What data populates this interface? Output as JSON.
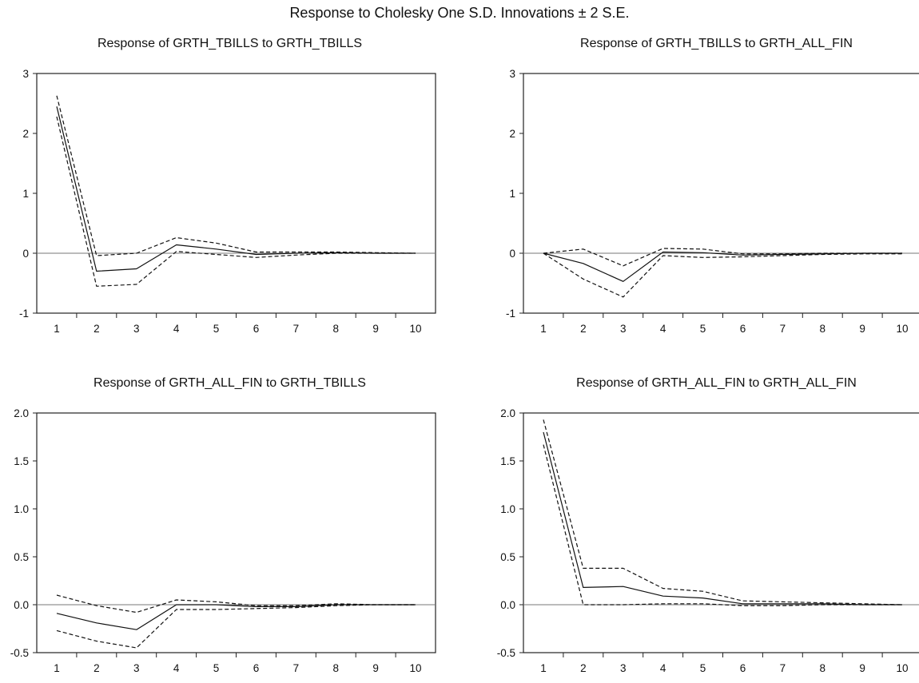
{
  "title": "Response to Cholesky One S.D. Innovations ± 2 S.E.",
  "chart_data": [
    {
      "type": "line",
      "title": "Response of GRTH_TBILLS to GRTH_TBILLS",
      "x": [
        1,
        2,
        3,
        4,
        5,
        6,
        7,
        8,
        9,
        10
      ],
      "ylim": [
        -1,
        3
      ],
      "yticks": [
        -1,
        0,
        1,
        2,
        3
      ],
      "ytick_labels": [
        "-1",
        "0",
        "1",
        "2",
        "3"
      ],
      "xtick_labels": [
        "1",
        "2",
        "3",
        "4",
        "5",
        "6",
        "7",
        "8",
        "9",
        "10"
      ],
      "zero_line": true,
      "series": [
        {
          "style": "solid",
          "values": [
            2.45,
            -0.3,
            -0.26,
            0.14,
            0.07,
            -0.02,
            0.0,
            0.01,
            0.0,
            0.0
          ]
        },
        {
          "style": "dashed",
          "values": [
            2.63,
            -0.04,
            0.0,
            0.26,
            0.17,
            0.02,
            0.02,
            0.02,
            0.01,
            0.0
          ]
        },
        {
          "style": "dashed",
          "values": [
            2.28,
            -0.55,
            -0.52,
            0.03,
            -0.02,
            -0.07,
            -0.03,
            0.0,
            0.0,
            0.0
          ]
        }
      ]
    },
    {
      "type": "line",
      "title": "Response of GRTH_TBILLS to GRTH_ALL_FIN",
      "x": [
        1,
        2,
        3,
        4,
        5,
        6,
        7,
        8,
        9,
        10
      ],
      "ylim": [
        -1,
        3
      ],
      "yticks": [
        -1,
        0,
        1,
        2,
        3
      ],
      "ytick_labels": [
        "-1",
        "0",
        "1",
        "2",
        "3"
      ],
      "xtick_labels": [
        "1",
        "2",
        "3",
        "4",
        "5",
        "6",
        "7",
        "8",
        "9",
        "10"
      ],
      "zero_line": true,
      "series": [
        {
          "style": "solid",
          "values": [
            0.0,
            -0.17,
            -0.47,
            0.02,
            0.01,
            -0.03,
            -0.02,
            -0.01,
            0.0,
            0.0
          ]
        },
        {
          "style": "dashed",
          "values": [
            0.0,
            0.07,
            -0.21,
            0.08,
            0.07,
            -0.01,
            -0.01,
            0.0,
            0.0,
            0.0
          ]
        },
        {
          "style": "dashed",
          "values": [
            0.0,
            -0.43,
            -0.73,
            -0.04,
            -0.07,
            -0.06,
            -0.04,
            -0.02,
            -0.01,
            -0.01
          ]
        }
      ]
    },
    {
      "type": "line",
      "title": "Response of GRTH_ALL_FIN to GRTH_TBILLS",
      "x": [
        1,
        2,
        3,
        4,
        5,
        6,
        7,
        8,
        9,
        10
      ],
      "ylim": [
        -0.5,
        2.0
      ],
      "yticks": [
        -0.5,
        0.0,
        0.5,
        1.0,
        1.5,
        2.0
      ],
      "ytick_labels": [
        "-0.5",
        "0.0",
        "0.5",
        "1.0",
        "1.5",
        "2.0"
      ],
      "xtick_labels": [
        "1",
        "2",
        "3",
        "4",
        "5",
        "6",
        "7",
        "8",
        "9",
        "10"
      ],
      "zero_line": true,
      "series": [
        {
          "style": "solid",
          "values": [
            -0.09,
            -0.19,
            -0.26,
            0.0,
            0.0,
            -0.02,
            -0.02,
            0.0,
            0.0,
            0.0
          ]
        },
        {
          "style": "dashed",
          "values": [
            0.1,
            -0.01,
            -0.08,
            0.05,
            0.03,
            -0.01,
            -0.01,
            0.01,
            0.0,
            0.0
          ]
        },
        {
          "style": "dashed",
          "values": [
            -0.27,
            -0.38,
            -0.45,
            -0.05,
            -0.05,
            -0.04,
            -0.03,
            -0.01,
            0.0,
            0.0
          ]
        }
      ]
    },
    {
      "type": "line",
      "title": "Response of GRTH_ALL_FIN to GRTH_ALL_FIN",
      "x": [
        1,
        2,
        3,
        4,
        5,
        6,
        7,
        8,
        9,
        10
      ],
      "ylim": [
        -0.5,
        2.0
      ],
      "yticks": [
        -0.5,
        0.0,
        0.5,
        1.0,
        1.5,
        2.0
      ],
      "ytick_labels": [
        "-0.5",
        "0.0",
        "0.5",
        "1.0",
        "1.5",
        "2.0"
      ],
      "xtick_labels": [
        "1",
        "2",
        "3",
        "4",
        "5",
        "6",
        "7",
        "8",
        "9",
        "10"
      ],
      "zero_line": true,
      "series": [
        {
          "style": "solid",
          "values": [
            1.8,
            0.18,
            0.19,
            0.09,
            0.07,
            0.01,
            0.01,
            0.01,
            0.0,
            0.0
          ]
        },
        {
          "style": "dashed",
          "values": [
            1.93,
            0.38,
            0.38,
            0.17,
            0.14,
            0.04,
            0.03,
            0.02,
            0.01,
            0.0
          ]
        },
        {
          "style": "dashed",
          "values": [
            1.67,
            0.0,
            0.0,
            0.01,
            0.01,
            -0.01,
            -0.01,
            0.0,
            0.0,
            0.0
          ]
        }
      ]
    }
  ]
}
